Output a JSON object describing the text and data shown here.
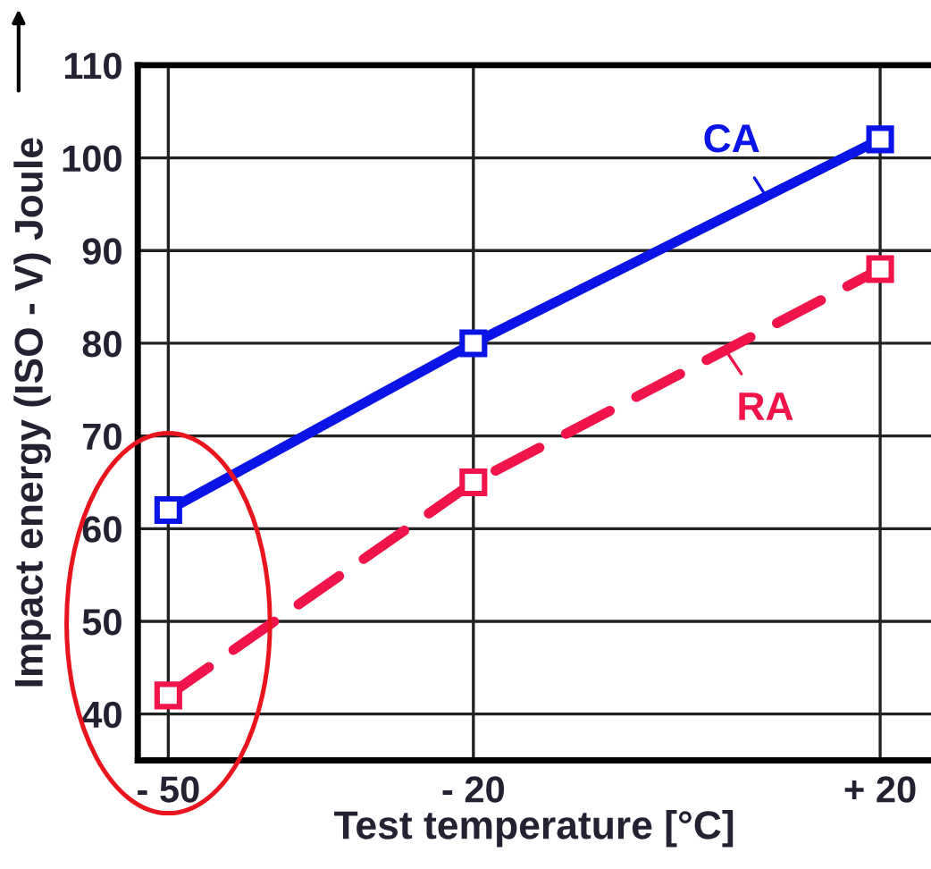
{
  "chart_data": {
    "type": "line",
    "xlabel": "Test temperature [°C]",
    "ylabel": "Impact energy (ISO - V) Joule",
    "x": [
      -50,
      -20,
      20
    ],
    "series": [
      {
        "name": "CA",
        "color": "#0a14e6",
        "values": [
          62,
          80,
          102
        ],
        "line_style": "solid"
      },
      {
        "name": "RA",
        "color": "#f0144a",
        "values": [
          42,
          65,
          88
        ],
        "line_style": "dashed"
      }
    ],
    "xlim": [
      -53,
      25
    ],
    "xticks": [
      {
        "value": -50,
        "label": "- 50"
      },
      {
        "value": -20,
        "label": "- 20"
      },
      {
        "value": 20,
        "label": "+ 20"
      }
    ],
    "ylim": [
      35,
      110
    ],
    "yticks": [
      40,
      50,
      60,
      70,
      80,
      90,
      100,
      110
    ],
    "grid": true,
    "marker": "square"
  }
}
